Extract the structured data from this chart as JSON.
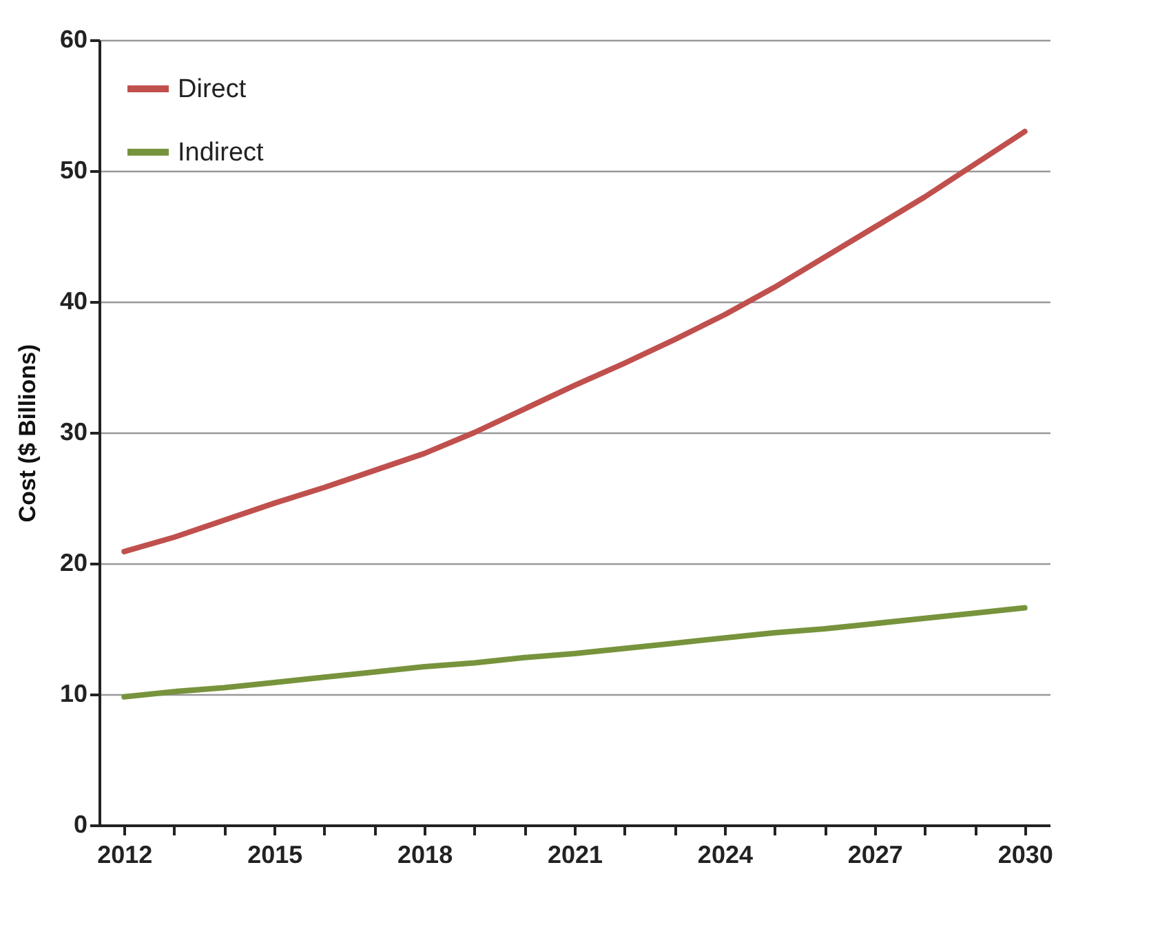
{
  "chart_data": {
    "type": "line",
    "ylabel": "Cost ($ Billions)",
    "categories": [
      "2012",
      null,
      null,
      "2015",
      null,
      null,
      "2018",
      null,
      null,
      "2021",
      null,
      null,
      "2024",
      null,
      null,
      "2027",
      null,
      null,
      "2030"
    ],
    "series": [
      {
        "name": "Direct",
        "color": "#c0504d",
        "values": [
          20.9,
          22.0,
          23.3,
          24.6,
          25.8,
          27.1,
          28.4,
          30.0,
          31.8,
          33.6,
          35.3,
          37.1,
          39.0,
          41.1,
          43.4,
          45.7,
          48.0,
          50.5,
          53.0
        ]
      },
      {
        "name": "Indirect",
        "color": "#77933c",
        "values": [
          9.8,
          10.2,
          10.5,
          10.9,
          11.3,
          11.7,
          12.1,
          12.4,
          12.8,
          13.1,
          13.5,
          13.9,
          14.3,
          14.7,
          15.0,
          15.4,
          15.8,
          16.2,
          16.6
        ]
      }
    ],
    "ylim": [
      0,
      60
    ],
    "yticks": [
      0,
      10,
      20,
      30,
      40,
      50,
      60
    ],
    "grid": "y",
    "legend": "top left",
    "marker": "none",
    "line_style": "solid"
  }
}
